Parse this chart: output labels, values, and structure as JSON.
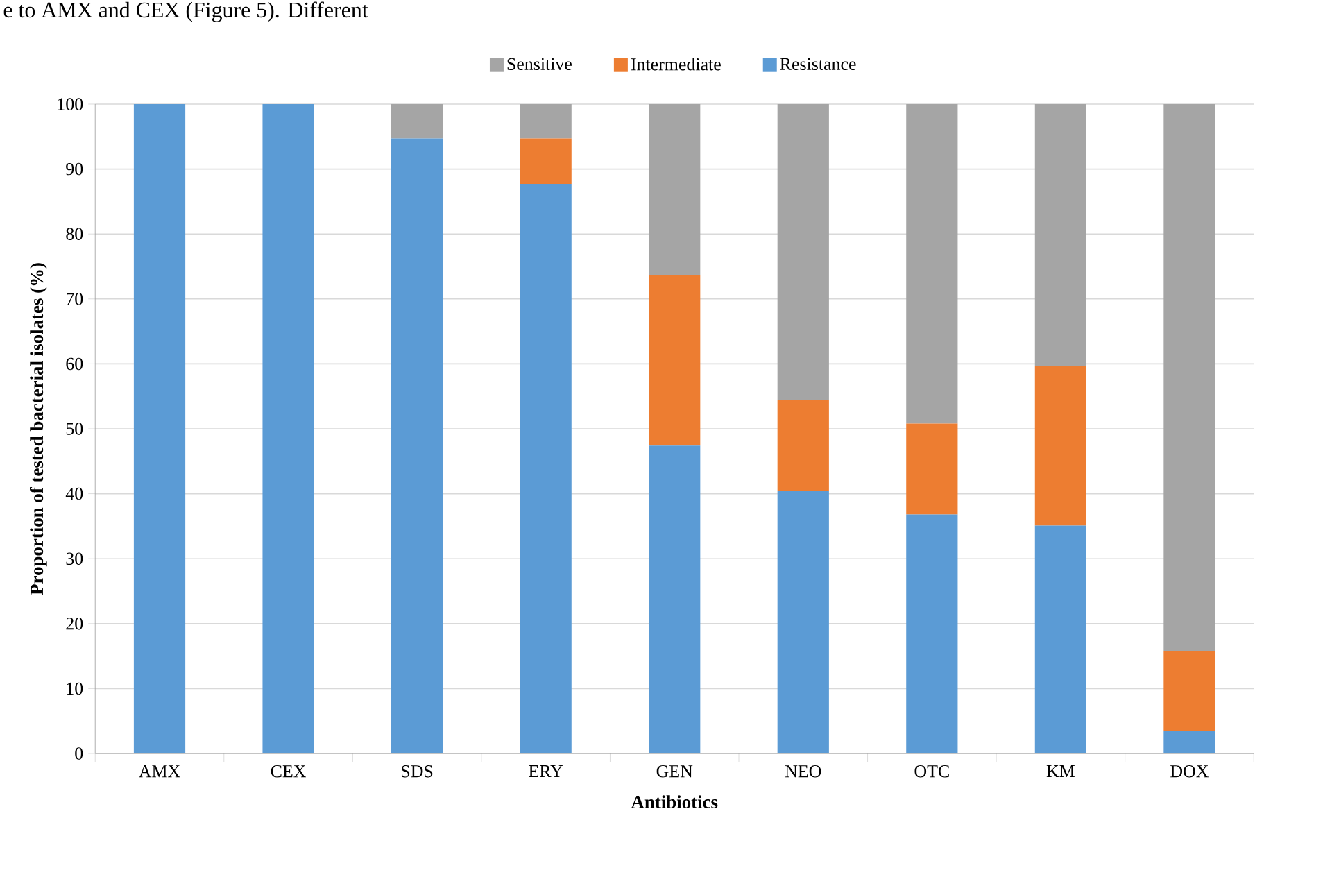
{
  "chart_data": {
    "type": "bar",
    "stacked": true,
    "xlabel": "Antibiotics",
    "ylabel": "Proportion of tested bacterial isolates (%)",
    "annotations": [
      "e to AMX and CEX (Figure 5). Different"
    ],
    "categories": [
      "AMX",
      "CEX",
      "SDS",
      "ERY",
      "GEN",
      "NEO",
      "OTC",
      "KM",
      "DOX"
    ],
    "series": [
      {
        "name": "Resistance",
        "color": "#5b9bd5",
        "values": [
          100,
          100,
          94.7,
          87.7,
          47.4,
          40.4,
          36.8,
          35.1,
          3.5
        ]
      },
      {
        "name": "Intermediate",
        "color": "#ed7d31",
        "values": [
          0,
          0,
          0,
          7.0,
          26.3,
          14.0,
          14.0,
          24.6,
          12.3
        ]
      },
      {
        "name": "Sensitive",
        "color": "#a5a5a5",
        "values": [
          0,
          0,
          5.3,
          5.3,
          26.3,
          45.6,
          49.2,
          40.3,
          84.2
        ]
      }
    ],
    "ylim": [
      0,
      100
    ],
    "yticks": [
      0,
      10,
      20,
      30,
      40,
      50,
      60,
      70,
      80,
      90,
      100
    ],
    "grid": "y",
    "legend": "top"
  }
}
